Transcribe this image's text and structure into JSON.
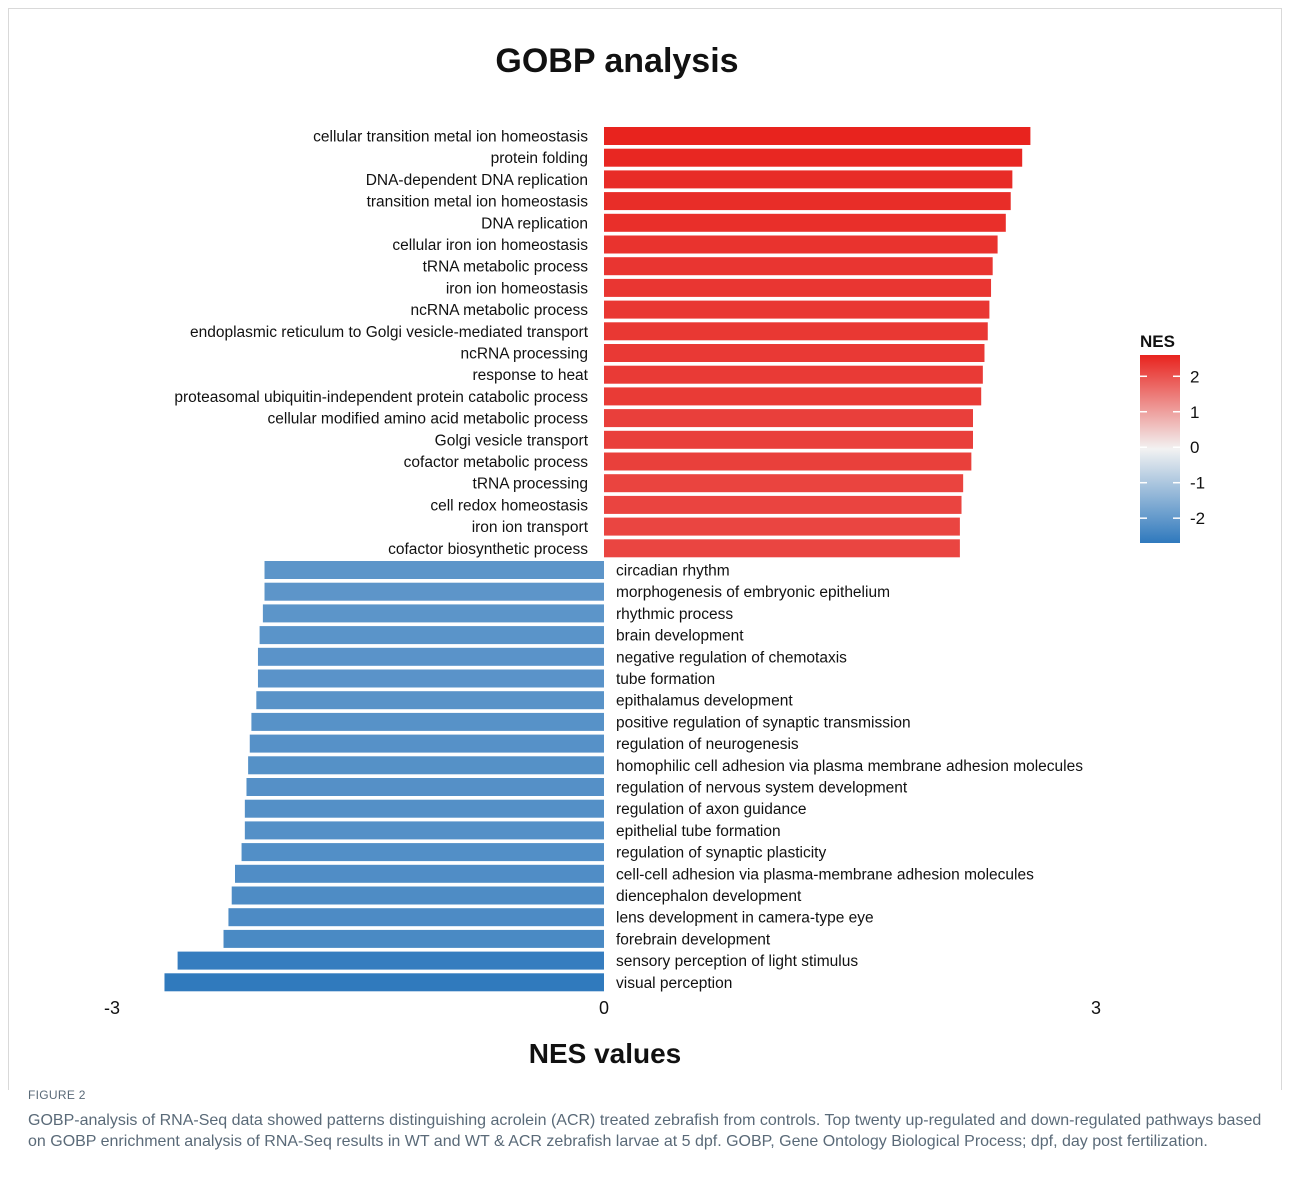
{
  "chart_data": {
    "type": "bar",
    "orientation": "horizontal",
    "title": "GOBP analysis",
    "xlabel": "NES values",
    "ylabel": "",
    "xlim": [
      -3,
      3
    ],
    "xticks": [
      "-3",
      "0",
      "3"
    ],
    "grid": false,
    "legend": {
      "title": "NES",
      "placement": "right",
      "type": "colorbar",
      "ticks": [
        "2",
        "1",
        "0",
        "-1",
        "-2"
      ],
      "range": [
        -2.7,
        2.6
      ],
      "colors": {
        "high": "#e8231e",
        "mid": "#f2f2f2",
        "low": "#2f79bd"
      }
    },
    "categories": [
      "cellular transition metal ion homeostasis",
      "protein folding",
      "DNA-dependent DNA replication",
      "transition metal ion homeostasis",
      "DNA replication",
      "cellular iron ion homeostasis",
      "tRNA metabolic process",
      "iron ion homeostasis",
      "ncRNA metabolic process",
      "endoplasmic reticulum to Golgi vesicle-mediated transport",
      "ncRNA processing",
      "response to heat",
      "proteasomal ubiquitin-independent protein catabolic process",
      "cellular modified amino acid metabolic process",
      "Golgi vesicle transport",
      "cofactor metabolic process",
      "tRNA processing",
      "cell redox homeostasis",
      "iron ion transport",
      "cofactor biosynthetic process",
      "circadian rhythm",
      "morphogenesis of embryonic epithelium",
      "rhythmic process",
      "brain development",
      "negative regulation of chemotaxis",
      "tube formation",
      "epithalamus development",
      "positive regulation of synaptic transmission",
      "regulation of neurogenesis",
      "homophilic cell adhesion via plasma membrane adhesion molecules",
      "regulation of nervous system development",
      "regulation of axon guidance",
      "epithelial tube formation",
      "regulation of synaptic plasticity",
      "cell-cell adhesion via plasma-membrane adhesion molecules",
      "diencephalon development",
      "lens development in camera-type eye",
      "forebrain development",
      "sensory perception of light stimulus",
      "visual perception"
    ],
    "values": [
      2.6,
      2.55,
      2.49,
      2.48,
      2.45,
      2.4,
      2.37,
      2.36,
      2.35,
      2.34,
      2.32,
      2.31,
      2.3,
      2.25,
      2.25,
      2.24,
      2.19,
      2.18,
      2.17,
      2.17,
      -2.07,
      -2.07,
      -2.08,
      -2.1,
      -2.11,
      -2.11,
      -2.12,
      -2.15,
      -2.16,
      -2.17,
      -2.18,
      -2.19,
      -2.19,
      -2.21,
      -2.25,
      -2.27,
      -2.29,
      -2.32,
      -2.6,
      -2.68
    ]
  },
  "figure": {
    "label": "FIGURE 2",
    "caption": "GOBP-analysis of RNA-Seq data showed patterns distinguishing acrolein (ACR) treated zebrafish from controls. Top twenty up-regulated and down-regulated pathways based on GOBP enrichment analysis of RNA-Seq results in WT and WT & ACR zebrafish larvae at 5 dpf. GOBP, Gene Ontology Biological Process; dpf, day post fertilization."
  }
}
